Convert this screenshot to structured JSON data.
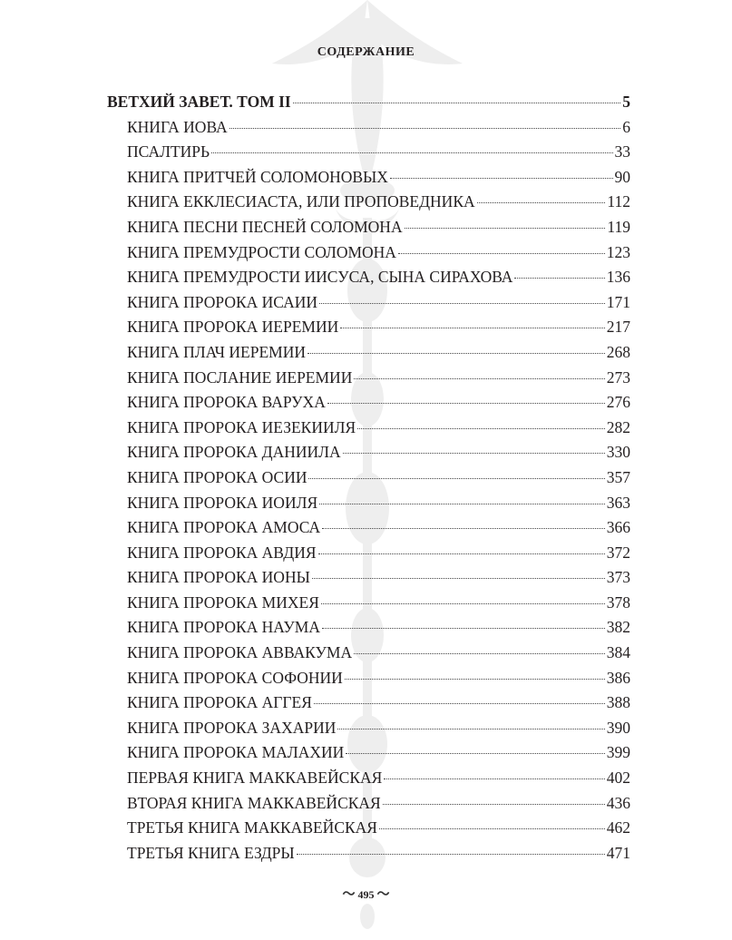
{
  "heading": "СОДЕРЖАНИЕ",
  "entries": [
    {
      "title": "ВЕТХИЙ ЗАВЕТ. ТОМ II",
      "page": "5",
      "level": "main"
    },
    {
      "title": "КНИГА ИОВА",
      "page": "6",
      "level": "sub"
    },
    {
      "title": "ПСАЛТИРЬ",
      "page": "33",
      "level": "sub"
    },
    {
      "title": "КНИГА ПРИТЧЕЙ СОЛОМОНОВЫХ",
      "page": "90",
      "level": "sub"
    },
    {
      "title": "КНИГА ЕККЛЕСИАСТА, ИЛИ ПРОПОВЕДНИКА",
      "page": "112",
      "level": "sub"
    },
    {
      "title": "КНИГА ПЕСНИ ПЕСНЕЙ СОЛОМОНА",
      "page": "119",
      "level": "sub"
    },
    {
      "title": "КНИГА ПРЕМУДРОСТИ СОЛОМОНА",
      "page": "123",
      "level": "sub"
    },
    {
      "title": "КНИГА ПРЕМУДРОСТИ ИИСУСА, СЫНА СИРАХОВА",
      "page": "136",
      "level": "sub"
    },
    {
      "title": "КНИГА ПРОРОКА ИСАИИ",
      "page": "171",
      "level": "sub"
    },
    {
      "title": "КНИГА ПРОРОКА ИЕРЕМИИ",
      "page": "217",
      "level": "sub"
    },
    {
      "title": "КНИГА ПЛАЧ ИЕРЕМИИ",
      "page": "268",
      "level": "sub"
    },
    {
      "title": "КНИГА ПОСЛАНИЕ ИЕРЕМИИ",
      "page": "273",
      "level": "sub"
    },
    {
      "title": "КНИГА ПРОРОКА ВАРУХА",
      "page": "276",
      "level": "sub"
    },
    {
      "title": "КНИГА ПРОРОКА ИЕЗЕКИИЛЯ",
      "page": "282",
      "level": "sub"
    },
    {
      "title": "КНИГА ПРОРОКА ДАНИИЛА",
      "page": "330",
      "level": "sub"
    },
    {
      "title": "КНИГА ПРОРОКА ОСИИ",
      "page": "357",
      "level": "sub"
    },
    {
      "title": "КНИГА ПРОРОКА ИОИЛЯ",
      "page": "363",
      "level": "sub"
    },
    {
      "title": "КНИГА ПРОРОКА АМОСА",
      "page": "366",
      "level": "sub"
    },
    {
      "title": "КНИГА ПРОРОКА АВДИЯ",
      "page": "372",
      "level": "sub"
    },
    {
      "title": "КНИГА ПРОРОКА ИОНЫ",
      "page": "373",
      "level": "sub"
    },
    {
      "title": "КНИГА ПРОРОКА МИХЕЯ",
      "page": "378",
      "level": "sub"
    },
    {
      "title": "КНИГА ПРОРОКА НАУМА",
      "page": "382",
      "level": "sub"
    },
    {
      "title": "КНИГА ПРОРОКА АВВАКУМА",
      "page": "384",
      "level": "sub"
    },
    {
      "title": "КНИГА ПРОРОКА СОФОНИИ",
      "page": "386",
      "level": "sub"
    },
    {
      "title": "КНИГА ПРОРОКА АГГЕЯ",
      "page": "388",
      "level": "sub"
    },
    {
      "title": "КНИГА ПРОРОКА ЗАХАРИИ",
      "page": "390",
      "level": "sub"
    },
    {
      "title": "КНИГА ПРОРОКА МАЛАХИИ",
      "page": "399",
      "level": "sub"
    },
    {
      "title": "ПЕРВАЯ КНИГА МАККАВЕЙСКАЯ",
      "page": "402",
      "level": "sub"
    },
    {
      "title": "ВТОРАЯ КНИГА МАККАВЕЙСКАЯ",
      "page": "436",
      "level": "sub"
    },
    {
      "title": "ТРЕТЬЯ КНИГА МАККАВЕЙСКАЯ",
      "page": "462",
      "level": "sub"
    },
    {
      "title": "ТРЕТЬЯ КНИГА ЕЗДРЫ",
      "page": "471",
      "level": "sub"
    }
  ],
  "footer": {
    "page_number": "495"
  },
  "colors": {
    "text": "#231f20",
    "ornament": "#ececec"
  }
}
